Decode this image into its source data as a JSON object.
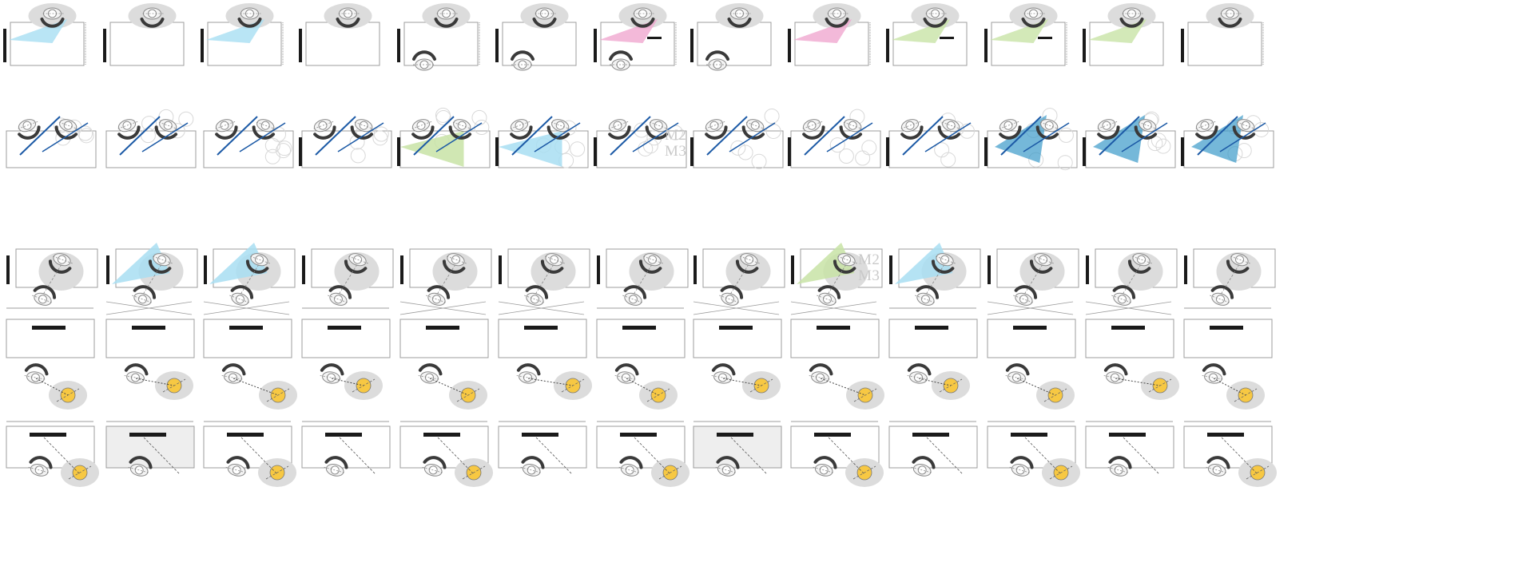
{
  "sheet": {
    "rows": [
      {
        "scenario": "wall-display-seated-pairs",
        "count": 13
      },
      {
        "scenario": "collaborative-sightlines",
        "count": 13
      },
      {
        "scenario": "mixed-seating-arrangements",
        "count": 13
      },
      {
        "scenario": "standing-desk-with-visitor",
        "count": 13
      },
      {
        "scenario": "desk-with-screen-and-visitor",
        "count": 13
      }
    ],
    "labels": [
      {
        "id": "label-row2-col6",
        "text": "M2\nM3"
      },
      {
        "id": "label-row3-col8",
        "text": "M2\nM3"
      }
    ]
  },
  "colors": {
    "line": "#8a8a8a",
    "furniture": "#9c9c9c",
    "wall": "#1a1a1a",
    "zone": "#dcdcdc",
    "view-blue": "#a8def2",
    "view-dark-blue": "#3a9ac9",
    "view-green": "#c8e3a6",
    "view-pink": "#f0a7d0",
    "person-yellow": "#f7c843",
    "stroke-blue": "#1c5aa6"
  },
  "icons": [
    "person-top-view-icon",
    "chair-icon",
    "desk-icon",
    "wall-icon",
    "screen-icon",
    "arrow-icon"
  ]
}
